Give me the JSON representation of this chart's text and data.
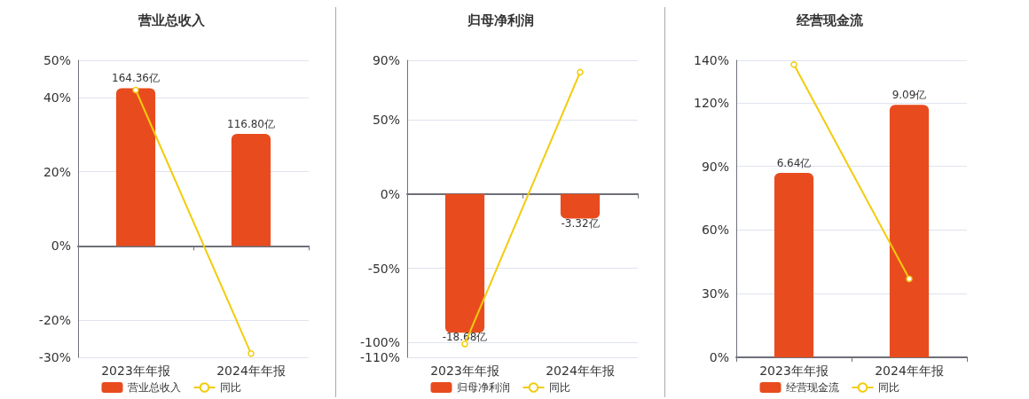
{
  "chart_data": [
    {
      "type": "bar",
      "title": "营业总收入",
      "categories": [
        "2023年年报",
        "2024年年报"
      ],
      "series": [
        {
          "name": "营业总收入",
          "axis": "y2",
          "color": "#e84c1e",
          "values": [
            164.36,
            116.8
          ],
          "value_labels": [
            "164.36亿",
            "116.80亿"
          ]
        },
        {
          "name": "同比",
          "type": "line",
          "color": "#f2cc0c",
          "values": [
            42,
            -29
          ]
        }
      ],
      "ylim": [
        -30,
        50
      ],
      "yticks": [
        {
          "value": -30,
          "label": "-30%"
        },
        {
          "value": -20,
          "label": "-20%"
        },
        {
          "value": 0,
          "label": "0%"
        },
        {
          "value": 20,
          "label": "20%"
        },
        {
          "value": 40,
          "label": "40%"
        },
        {
          "value": 50,
          "label": "50%"
        }
      ],
      "grid": "y",
      "legend": "bottom",
      "marker": "circle"
    },
    {
      "type": "bar",
      "title": "归母净利润",
      "categories": [
        "2023年年报",
        "2024年年报"
      ],
      "series": [
        {
          "name": "归母净利润",
          "axis": "y2",
          "color": "#e84c1e",
          "values": [
            -18.68,
            -3.32
          ],
          "value_labels": [
            "-18.68亿",
            "-3.32亿"
          ]
        },
        {
          "name": "同比",
          "type": "line",
          "color": "#f2cc0c",
          "values": [
            -101,
            82
          ]
        }
      ],
      "ylim": [
        -110,
        90
      ],
      "yticks": [
        {
          "value": -110,
          "label": "-110%"
        },
        {
          "value": -100,
          "label": "-100%"
        },
        {
          "value": -50,
          "label": "-50%"
        },
        {
          "value": 0,
          "label": "0%"
        },
        {
          "value": 50,
          "label": "50%"
        },
        {
          "value": 90,
          "label": "90%"
        }
      ],
      "grid": "y",
      "legend": "bottom",
      "marker": "circle"
    },
    {
      "type": "bar",
      "title": "经营现金流",
      "categories": [
        "2023年年报",
        "2024年年报"
      ],
      "series": [
        {
          "name": "经营现金流",
          "axis": "y2",
          "color": "#e84c1e",
          "values": [
            6.64,
            9.09
          ],
          "value_labels": [
            "6.64亿",
            "9.09亿"
          ]
        },
        {
          "name": "同比",
          "type": "line",
          "color": "#f2cc0c",
          "values": [
            138,
            37
          ]
        }
      ],
      "ylim": [
        0,
        140
      ],
      "yticks": [
        {
          "value": 0,
          "label": "0%"
        },
        {
          "value": 30,
          "label": "30%"
        },
        {
          "value": 60,
          "label": "60%"
        },
        {
          "value": 90,
          "label": "90%"
        },
        {
          "value": 120,
          "label": "120%"
        },
        {
          "value": 140,
          "label": "140%"
        }
      ],
      "grid": "y",
      "legend": "bottom",
      "marker": "circle"
    }
  ]
}
